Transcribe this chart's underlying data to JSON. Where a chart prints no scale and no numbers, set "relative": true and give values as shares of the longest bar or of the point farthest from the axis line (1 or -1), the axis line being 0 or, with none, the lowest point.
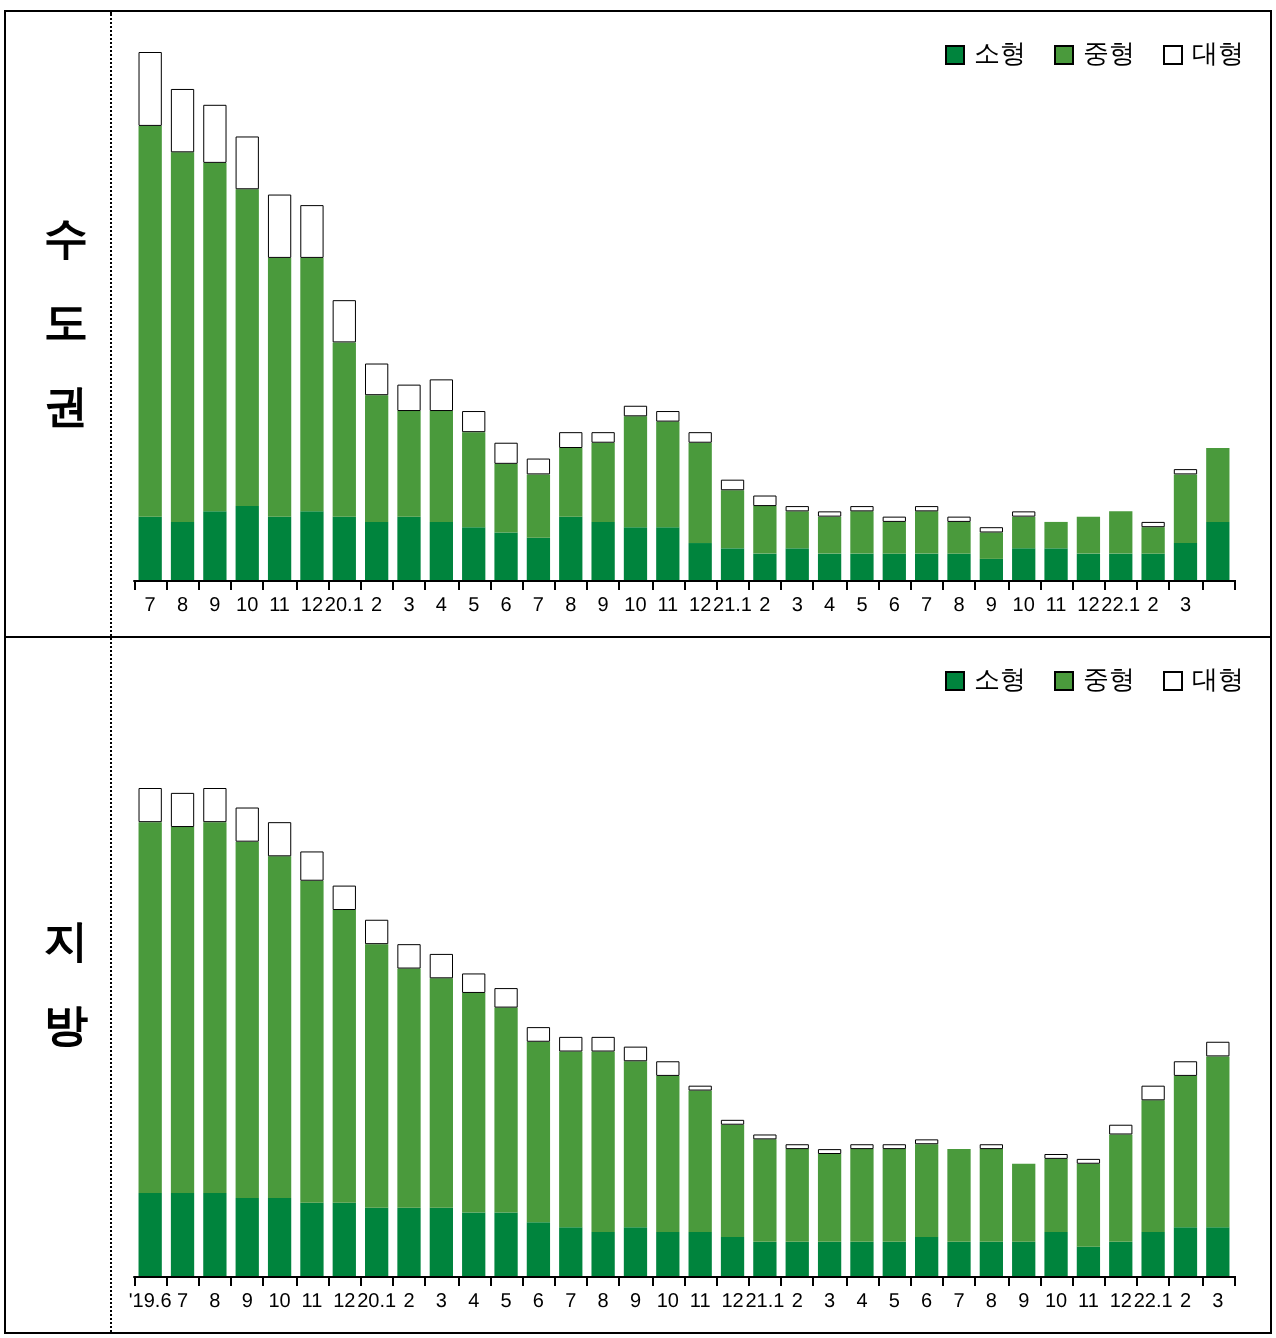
{
  "chart_data": [
    {
      "type": "bar",
      "title": "수도권",
      "stacked": true,
      "relative": true,
      "legend": "top right",
      "categories": [
        "7",
        "8",
        "9",
        "10",
        "11",
        "12",
        "20.1",
        "2",
        "3",
        "4",
        "5",
        "6",
        "7",
        "8",
        "9",
        "10",
        "11",
        "12",
        "21.1",
        "2",
        "3",
        "4",
        "5",
        "6",
        "7",
        "8",
        "9",
        "10",
        "11",
        "12",
        "22.1",
        "2",
        "3",
        null
      ],
      "series": [
        {
          "name": "소형",
          "color": "#00843d",
          "values": [
            0.12,
            0.11,
            0.13,
            0.14,
            0.12,
            0.13,
            0.12,
            0.11,
            0.12,
            0.11,
            0.1,
            0.09,
            0.08,
            0.12,
            0.11,
            0.1,
            0.1,
            0.07,
            0.06,
            0.05,
            0.06,
            0.05,
            0.05,
            0.05,
            0.05,
            0.05,
            0.04,
            0.06,
            0.06,
            0.05,
            0.05,
            0.05,
            0.07,
            0.11
          ]
        },
        {
          "name": "중형",
          "color": "#4a9a3c",
          "values": [
            0.74,
            0.7,
            0.66,
            0.6,
            0.49,
            0.48,
            0.33,
            0.24,
            0.2,
            0.21,
            0.18,
            0.13,
            0.12,
            0.13,
            0.15,
            0.21,
            0.2,
            0.19,
            0.11,
            0.09,
            0.07,
            0.07,
            0.08,
            0.06,
            0.08,
            0.06,
            0.05,
            0.06,
            0.05,
            0.07,
            0.08,
            0.05,
            0.13,
            0.14
          ]
        },
        {
          "name": "대형",
          "color": "#ffffff",
          "values": [
            0.14,
            0.12,
            0.11,
            0.1,
            0.12,
            0.1,
            0.08,
            0.06,
            0.05,
            0.06,
            0.04,
            0.04,
            0.03,
            0.03,
            0.02,
            0.02,
            0.02,
            0.02,
            0.02,
            0.02,
            0.01,
            0.01,
            0.01,
            0.01,
            0.01,
            0.01,
            0.01,
            0.01,
            0.0,
            0.0,
            0.0,
            0.01,
            0.01,
            0
          ]
        }
      ]
    },
    {
      "type": "bar",
      "title": "지방",
      "stacked": true,
      "relative": true,
      "legend": "top right",
      "categories": [
        "'19.6",
        "7",
        "8",
        "9",
        "10",
        "11",
        "12",
        "20.1",
        "2",
        "3",
        "4",
        "5",
        "6",
        "7",
        "8",
        "9",
        "10",
        "11",
        "12",
        "21.1",
        "2",
        "3",
        "4",
        "5",
        "6",
        "7",
        "8",
        "9",
        "10",
        "11",
        "12",
        "22.1",
        "2",
        "3"
      ],
      "series": [
        {
          "name": "소형",
          "color": "#00843d",
          "values": [
            0.17,
            0.17,
            0.17,
            0.16,
            0.16,
            0.15,
            0.15,
            0.14,
            0.14,
            0.14,
            0.13,
            0.13,
            0.11,
            0.1,
            0.09,
            0.1,
            0.09,
            0.09,
            0.08,
            0.07,
            0.07,
            0.07,
            0.07,
            0.07,
            0.08,
            0.07,
            0.07,
            0.07,
            0.09,
            0.06,
            0.07,
            0.09,
            0.1,
            0.1
          ]
        },
        {
          "name": "중형",
          "color": "#4a9a3c",
          "values": [
            0.76,
            0.75,
            0.76,
            0.73,
            0.7,
            0.66,
            0.6,
            0.54,
            0.49,
            0.47,
            0.45,
            0.42,
            0.37,
            0.36,
            0.37,
            0.34,
            0.32,
            0.29,
            0.23,
            0.21,
            0.19,
            0.18,
            0.19,
            0.19,
            0.19,
            0.19,
            0.19,
            0.16,
            0.15,
            0.17,
            0.22,
            0.27,
            0.31,
            0.35
          ]
        },
        {
          "name": "대형",
          "color": "#ffffff",
          "values": [
            0.07,
            0.07,
            0.07,
            0.07,
            0.07,
            0.06,
            0.05,
            0.05,
            0.05,
            0.05,
            0.04,
            0.04,
            0.03,
            0.03,
            0.03,
            0.03,
            0.03,
            0.01,
            0.01,
            0.01,
            0.01,
            0.01,
            0.01,
            0.01,
            0.01,
            0.0,
            0.01,
            0.0,
            0.01,
            0.01,
            0.02,
            0.03,
            0.03,
            0.03
          ]
        }
      ]
    }
  ]
}
